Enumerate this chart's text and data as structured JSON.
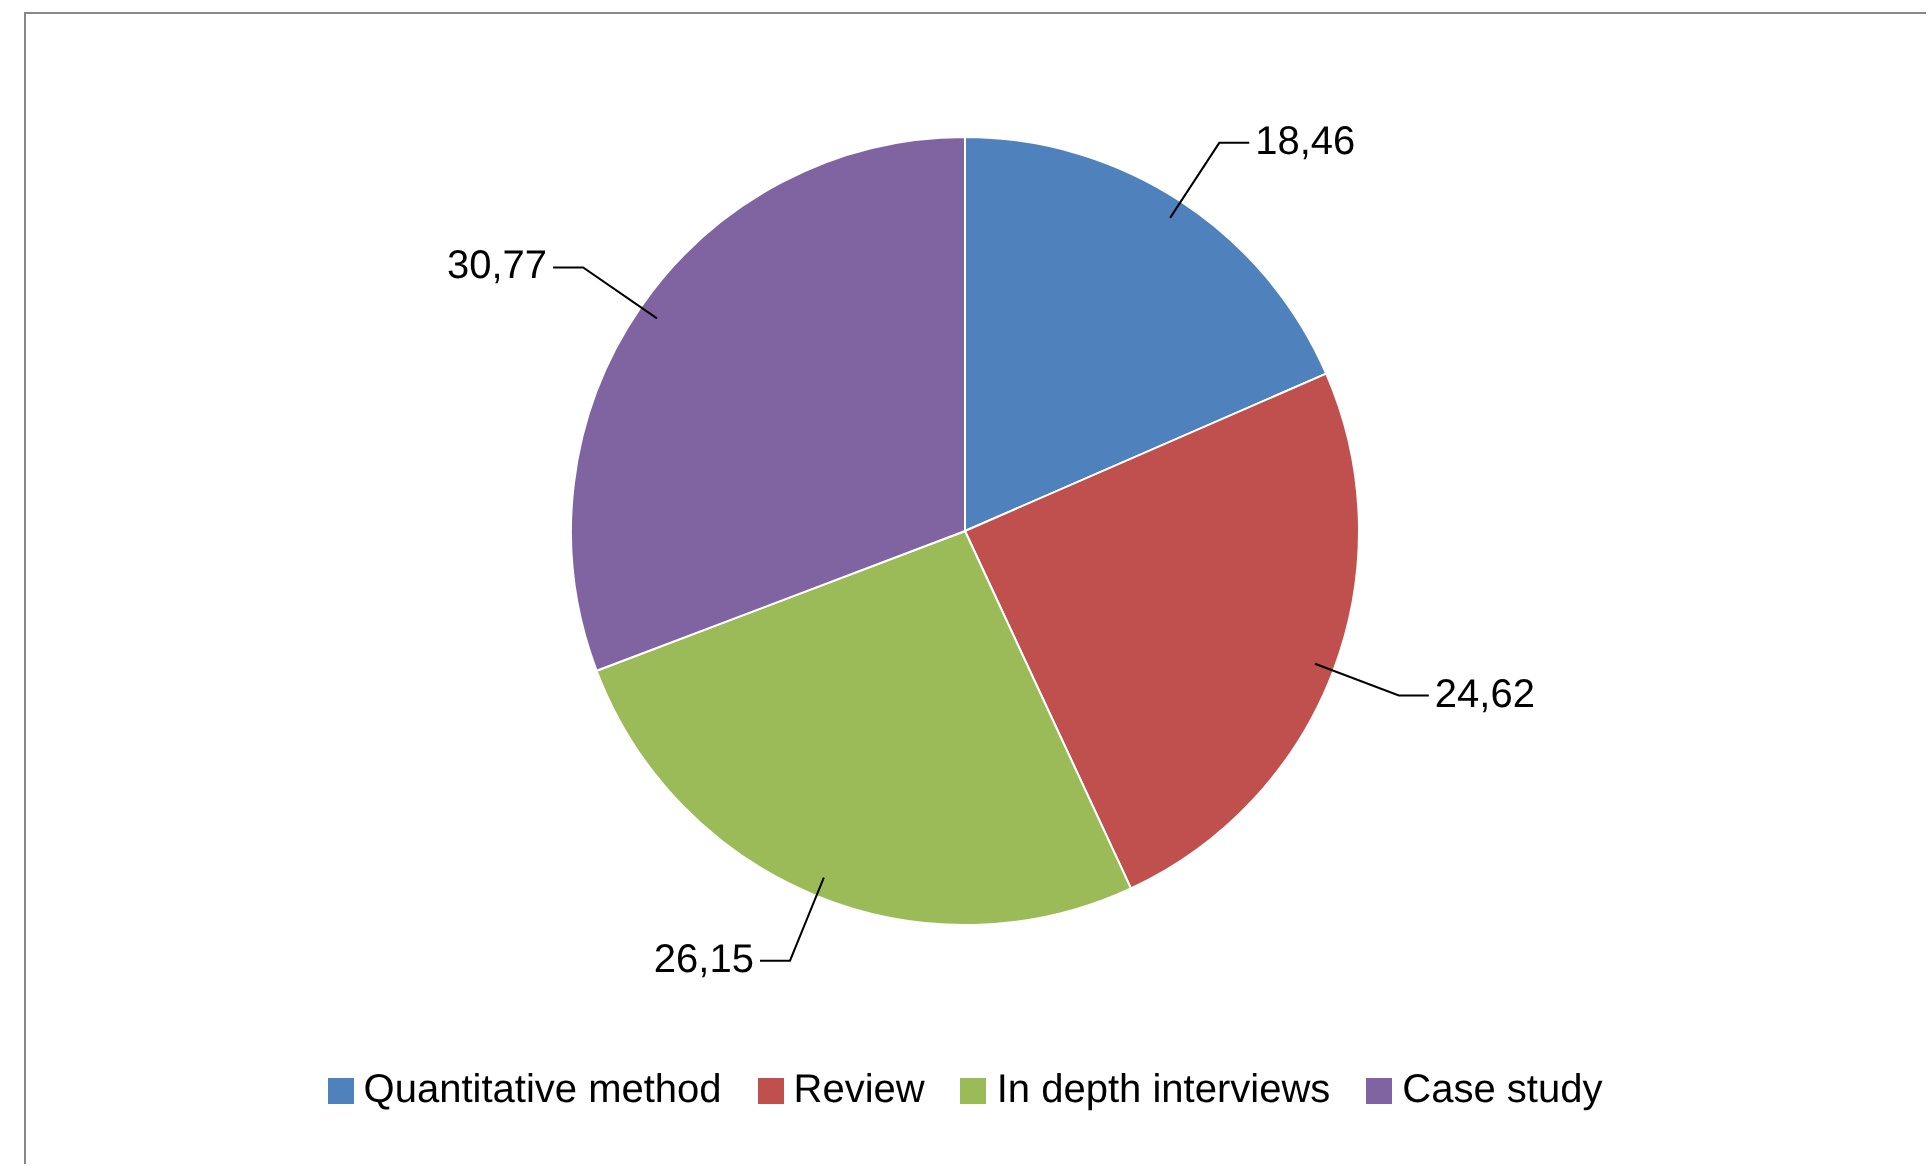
{
  "chart_data": {
    "type": "pie",
    "categories": [
      "Quantitative method",
      "Review",
      "In depth interviews",
      "Case study"
    ],
    "values": [
      18.46,
      24.62,
      26.15,
      30.77
    ],
    "colors": [
      "#4f81bd",
      "#c0504d",
      "#9bbb59",
      "#8064a2"
    ],
    "value_labels": [
      "18,46",
      "24,62",
      "26,15",
      "30,77"
    ],
    "legend": "bottom"
  }
}
